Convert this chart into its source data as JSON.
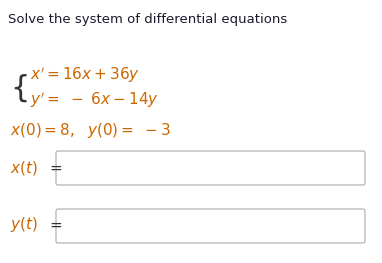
{
  "title": "Solve the system of differential equations",
  "title_color": "#1a1a2e",
  "title_fontsize": 9.5,
  "math_color": "#cc6600",
  "text_color": "#333333",
  "bg_color": "#ffffff",
  "box_color": "#aaaaaa",
  "eq_fontsize": 11,
  "ic_fontsize": 11,
  "label_fontsize": 11,
  "brace_fontsize": 22,
  "eq_sign_fontsize": 11
}
